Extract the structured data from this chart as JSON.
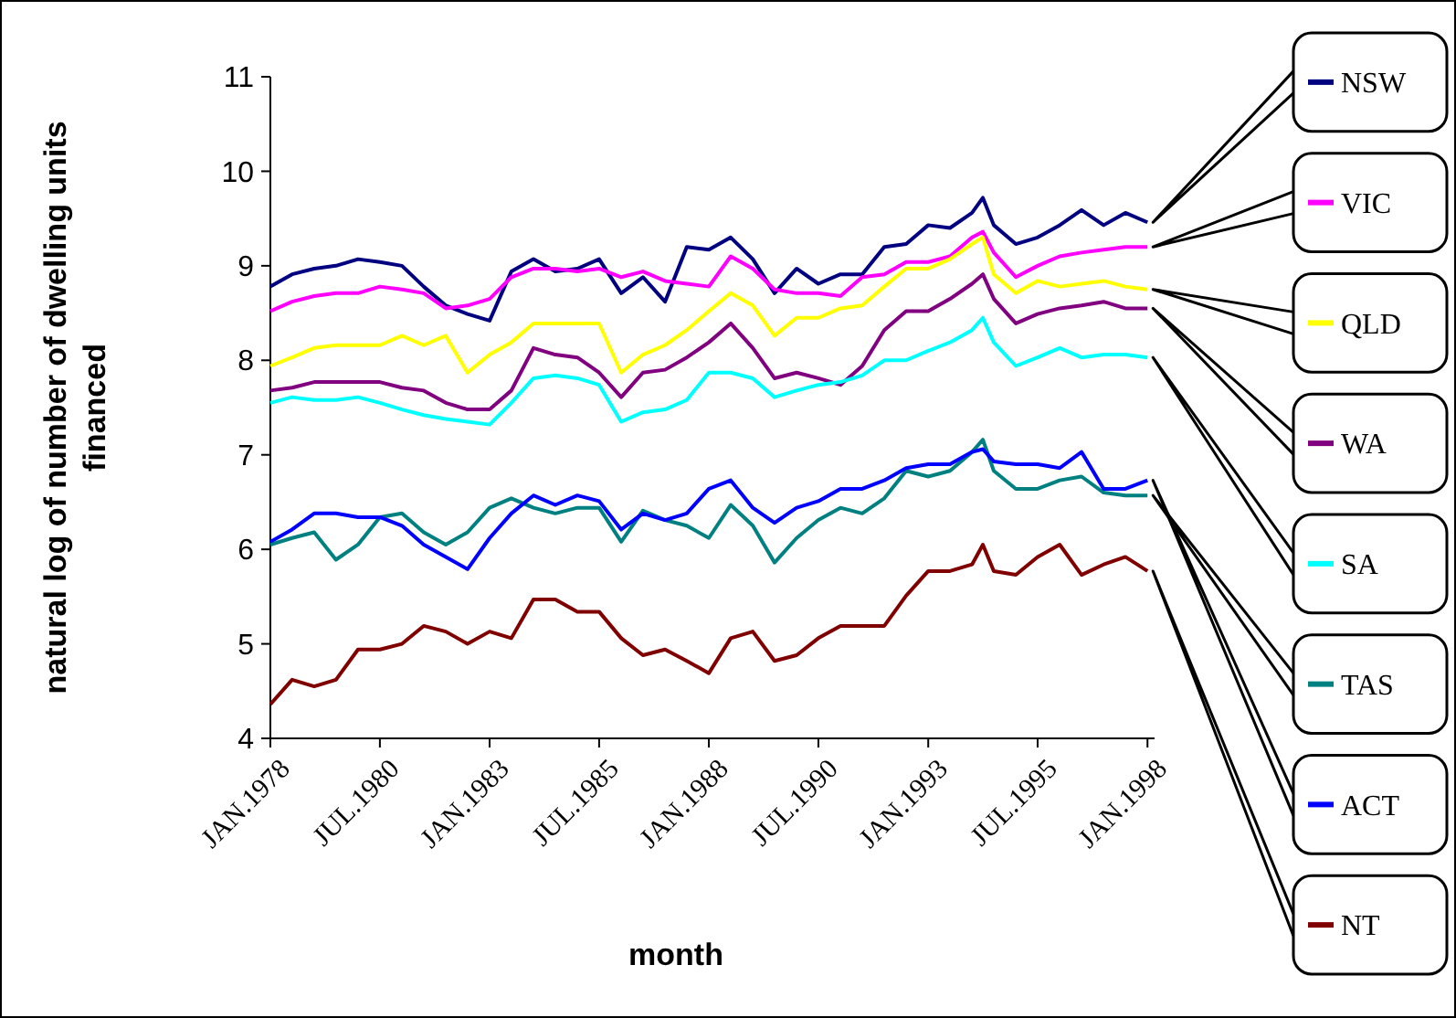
{
  "chart_data": {
    "type": "line",
    "xlabel": "month",
    "ylabel": "natural log of number of dwelling units financed",
    "x": [
      "1978-01",
      "1978-07",
      "1979-01",
      "1979-07",
      "1980-01",
      "1980-07",
      "1981-01",
      "1981-07",
      "1982-01",
      "1982-07",
      "1983-01",
      "1983-07",
      "1984-01",
      "1984-07",
      "1985-01",
      "1985-07",
      "1986-01",
      "1986-07",
      "1987-01",
      "1987-07",
      "1988-01",
      "1988-07",
      "1989-01",
      "1989-07",
      "1990-01",
      "1990-07",
      "1991-01",
      "1991-07",
      "1992-01",
      "1992-07",
      "1993-01",
      "1993-07",
      "1994-01",
      "1994-04",
      "1994-07",
      "1995-01",
      "1995-07",
      "1996-01",
      "1996-07",
      "1997-01",
      "1997-07",
      "1998-01"
    ],
    "xlim": [
      "1978-01",
      "1998-03"
    ],
    "xticks": [
      {
        "value": "1978-01",
        "label": "JAN.1978"
      },
      {
        "value": "1980-07",
        "label": "JUL.1980"
      },
      {
        "value": "1983-01",
        "label": "JAN.1983"
      },
      {
        "value": "1985-07",
        "label": "JUL.1985"
      },
      {
        "value": "1988-01",
        "label": "JAN.1988"
      },
      {
        "value": "1990-07",
        "label": "JUL.1990"
      },
      {
        "value": "1993-01",
        "label": "JAN.1993"
      },
      {
        "value": "1995-07",
        "label": "JUL.1995"
      },
      {
        "value": "1998-01",
        "label": "JAN.1998"
      }
    ],
    "legend": "right",
    "ylim": [
      4,
      11
    ],
    "yticks": [
      4,
      5,
      6,
      7,
      8,
      9,
      10,
      11
    ],
    "series": [
      {
        "name": "NSW",
        "color": "#000080",
        "values": [
          8.78,
          8.91,
          8.97,
          9.0,
          9.07,
          9.04,
          9.0,
          8.78,
          8.58,
          8.49,
          8.42,
          8.94,
          9.07,
          8.94,
          8.97,
          9.07,
          8.71,
          8.88,
          8.62,
          9.2,
          9.17,
          9.3,
          9.07,
          8.71,
          8.97,
          8.81,
          8.91,
          8.91,
          9.2,
          9.23,
          9.43,
          9.4,
          9.56,
          9.72,
          9.43,
          9.23,
          9.3,
          9.43,
          9.59,
          9.43,
          9.56,
          9.46
        ]
      },
      {
        "name": "VIC",
        "color": "#ff00ff",
        "values": [
          8.52,
          8.62,
          8.68,
          8.71,
          8.71,
          8.78,
          8.75,
          8.71,
          8.55,
          8.58,
          8.65,
          8.88,
          8.97,
          8.97,
          8.94,
          8.97,
          8.88,
          8.94,
          8.84,
          8.81,
          8.78,
          9.1,
          8.97,
          8.75,
          8.71,
          8.71,
          8.68,
          8.88,
          8.91,
          9.04,
          9.04,
          9.1,
          9.3,
          9.36,
          9.14,
          8.88,
          9.0,
          9.1,
          9.14,
          9.17,
          9.2,
          9.2
        ]
      },
      {
        "name": "QLD",
        "color": "#ffff00",
        "values": [
          7.94,
          8.03,
          8.13,
          8.16,
          8.16,
          8.16,
          8.26,
          8.16,
          8.26,
          7.87,
          8.06,
          8.19,
          8.39,
          8.39,
          8.39,
          8.39,
          7.87,
          8.06,
          8.16,
          8.32,
          8.52,
          8.71,
          8.58,
          8.26,
          8.45,
          8.45,
          8.55,
          8.58,
          8.78,
          8.97,
          8.97,
          9.07,
          9.23,
          9.3,
          8.91,
          8.71,
          8.84,
          8.78,
          8.81,
          8.84,
          8.78,
          8.75
        ]
      },
      {
        "name": "WA",
        "color": "#800080",
        "values": [
          7.68,
          7.71,
          7.77,
          7.77,
          7.77,
          7.77,
          7.71,
          7.68,
          7.55,
          7.48,
          7.48,
          7.68,
          8.13,
          8.06,
          8.03,
          7.87,
          7.61,
          7.87,
          7.9,
          8.03,
          8.19,
          8.39,
          8.13,
          7.81,
          7.87,
          7.81,
          7.74,
          7.94,
          8.32,
          8.52,
          8.52,
          8.65,
          8.81,
          8.91,
          8.65,
          8.39,
          8.49,
          8.55,
          8.58,
          8.62,
          8.55,
          8.55
        ]
      },
      {
        "name": "SA",
        "color": "#00ffff",
        "values": [
          7.55,
          7.61,
          7.58,
          7.58,
          7.61,
          7.55,
          7.48,
          7.42,
          7.38,
          7.35,
          7.32,
          7.55,
          7.81,
          7.84,
          7.81,
          7.74,
          7.35,
          7.45,
          7.48,
          7.58,
          7.87,
          7.87,
          7.81,
          7.61,
          7.68,
          7.74,
          7.77,
          7.84,
          8.0,
          8.0,
          8.1,
          8.19,
          8.32,
          8.45,
          8.19,
          7.94,
          8.03,
          8.13,
          8.03,
          8.06,
          8.06,
          8.03
        ]
      },
      {
        "name": "TAS",
        "color": "#008080",
        "values": [
          6.05,
          6.12,
          6.18,
          5.89,
          6.05,
          6.34,
          6.38,
          6.18,
          6.05,
          6.18,
          6.44,
          6.54,
          6.44,
          6.38,
          6.44,
          6.44,
          6.08,
          6.41,
          6.31,
          6.25,
          6.12,
          6.47,
          6.25,
          5.86,
          6.12,
          6.31,
          6.44,
          6.38,
          6.54,
          6.83,
          6.77,
          6.83,
          7.03,
          7.16,
          6.83,
          6.64,
          6.64,
          6.73,
          6.77,
          6.6,
          6.57,
          6.57
        ]
      },
      {
        "name": "ACT",
        "color": "#0000ff",
        "values": [
          6.08,
          6.21,
          6.38,
          6.38,
          6.34,
          6.34,
          6.25,
          6.05,
          5.92,
          5.79,
          6.12,
          6.38,
          6.57,
          6.47,
          6.57,
          6.51,
          6.21,
          6.38,
          6.31,
          6.38,
          6.64,
          6.73,
          6.44,
          6.28,
          6.44,
          6.51,
          6.64,
          6.64,
          6.73,
          6.86,
          6.9,
          6.9,
          7.03,
          7.06,
          6.93,
          6.9,
          6.9,
          6.86,
          7.03,
          6.64,
          6.64,
          6.73
        ]
      },
      {
        "name": "NT",
        "color": "#800000",
        "values": [
          4.36,
          4.62,
          4.55,
          4.62,
          4.94,
          4.94,
          5.0,
          5.19,
          5.13,
          5.0,
          5.13,
          5.06,
          5.47,
          5.47,
          5.34,
          5.34,
          5.06,
          4.88,
          4.94,
          4.82,
          4.69,
          5.06,
          5.13,
          4.82,
          4.88,
          5.06,
          5.19,
          5.19,
          5.19,
          5.51,
          5.77,
          5.77,
          5.84,
          6.05,
          5.77,
          5.73,
          5.92,
          6.05,
          5.73,
          5.84,
          5.92,
          5.77
        ]
      }
    ]
  }
}
